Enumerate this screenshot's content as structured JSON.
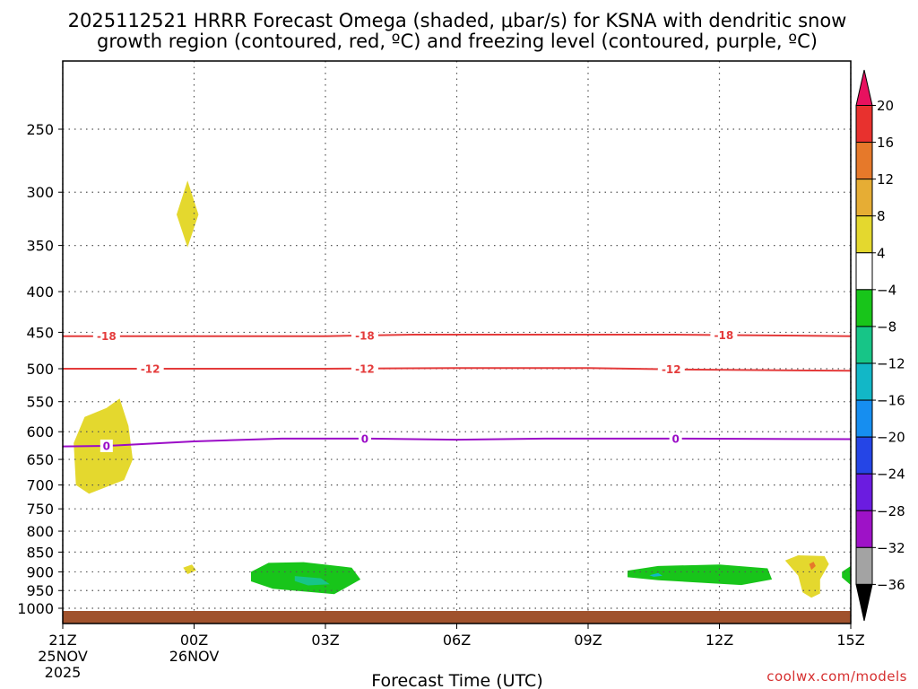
{
  "chart_data": {
    "type": "heatmap",
    "title_line1": "2025112521 HRRR Forecast Omega (shaded, μbar/s) for KSNA with dendritic snow",
    "title_line2": "growth region (contoured, red, ºC) and freezing level (contoured, purple, ºC)",
    "xlabel": "Forecast Time (UTC)",
    "credit": "coolwx.com/models",
    "x_ticks": [
      {
        "hour": 0,
        "lines": [
          "21Z",
          "25NOV",
          "2025"
        ]
      },
      {
        "hour": 3,
        "lines": [
          "00Z",
          "26NOV"
        ]
      },
      {
        "hour": 6,
        "lines": [
          "03Z"
        ]
      },
      {
        "hour": 9,
        "lines": [
          "06Z"
        ]
      },
      {
        "hour": 12,
        "lines": [
          "09Z"
        ]
      },
      {
        "hour": 15,
        "lines": [
          "12Z"
        ]
      },
      {
        "hour": 18,
        "lines": [
          "15Z"
        ]
      }
    ],
    "x_range_hours": [
      0,
      18
    ],
    "y_ticks": [
      250,
      300,
      350,
      400,
      450,
      500,
      550,
      600,
      650,
      700,
      750,
      800,
      850,
      900,
      950,
      1000
    ],
    "y_range_hpa": [
      200,
      1030
    ],
    "y_scale": "log",
    "grid": true,
    "surface_color": "#a0522d",
    "colorbar": {
      "levels": [
        20,
        16,
        12,
        8,
        4,
        -4,
        -8,
        -12,
        -16,
        -20,
        -24,
        -28,
        -32,
        -36
      ],
      "colors": [
        "#e8115f",
        "#e8312e",
        "#e6792a",
        "#e6ad34",
        "#e4d82e",
        "#ffffff",
        "#18c51a",
        "#17c587",
        "#12b7c7",
        "#168ef0",
        "#2545e6",
        "#6b1ce0",
        "#9e12c7",
        "#a3a3a3",
        "#000000"
      ]
    },
    "contours": [
      {
        "kind": "dendritic-18",
        "color": "#e43b3b",
        "label": "-18",
        "points": [
          [
            0,
            455
          ],
          [
            3,
            455
          ],
          [
            6,
            455
          ],
          [
            8,
            453
          ],
          [
            11,
            453
          ],
          [
            14,
            453
          ],
          [
            18,
            455
          ]
        ],
        "label_hours": [
          1,
          6.9,
          15.1
        ]
      },
      {
        "kind": "dendritic-12",
        "color": "#e43b3b",
        "label": "-12",
        "points": [
          [
            0,
            500
          ],
          [
            3,
            500
          ],
          [
            6,
            500
          ],
          [
            9,
            499
          ],
          [
            12,
            499
          ],
          [
            14,
            501
          ],
          [
            18,
            503
          ]
        ],
        "label_hours": [
          2,
          6.9,
          13.9
        ]
      },
      {
        "kind": "freezing",
        "color": "#9b0cc7",
        "label": "0",
        "points": [
          [
            0,
            626
          ],
          [
            1,
            625
          ],
          [
            3,
            617
          ],
          [
            5,
            612
          ],
          [
            7,
            612
          ],
          [
            9,
            614
          ],
          [
            11,
            612
          ],
          [
            14,
            612
          ],
          [
            18,
            613
          ]
        ],
        "label_hours": [
          1,
          6.9,
          14
        ]
      }
    ],
    "regions": [
      {
        "id": "upper-updraft",
        "color": "#e4d82e",
        "points": [
          [
            2.85,
            352
          ],
          [
            2.6,
            320
          ],
          [
            2.85,
            290
          ],
          [
            3.1,
            320
          ],
          [
            2.85,
            352
          ]
        ]
      },
      {
        "id": "midlevel-updraft",
        "color": "#e4d82e",
        "points": [
          [
            0.3,
            700
          ],
          [
            0.25,
            620
          ],
          [
            0.5,
            575
          ],
          [
            1,
            560
          ],
          [
            1.3,
            545
          ],
          [
            1.5,
            590
          ],
          [
            1.6,
            650
          ],
          [
            1.4,
            690
          ],
          [
            0.6,
            718
          ],
          [
            0.3,
            700
          ]
        ]
      },
      {
        "id": "small-updraft",
        "color": "#e4d82e",
        "points": [
          [
            2.75,
            889
          ],
          [
            2.95,
            881
          ],
          [
            3.05,
            896
          ],
          [
            2.85,
            906
          ],
          [
            2.75,
            889
          ]
        ]
      },
      {
        "id": "downdraft-a",
        "color": "#18c51a",
        "points": [
          [
            4.3,
            900
          ],
          [
            4.7,
            877
          ],
          [
            5.5,
            875
          ],
          [
            6.6,
            889
          ],
          [
            6.8,
            920
          ],
          [
            6.2,
            960
          ],
          [
            4.8,
            945
          ],
          [
            4.3,
            925
          ],
          [
            4.3,
            900
          ]
        ]
      },
      {
        "id": "downdraft-a-core",
        "color": "#17c587",
        "points": [
          [
            5.3,
            911
          ],
          [
            5.9,
            917
          ],
          [
            6.1,
            933
          ],
          [
            5.6,
            936
          ],
          [
            5.3,
            924
          ],
          [
            5.3,
            911
          ]
        ]
      },
      {
        "id": "downdraft-b",
        "color": "#18c51a",
        "points": [
          [
            12.9,
            897
          ],
          [
            13.6,
            885
          ],
          [
            15,
            881
          ],
          [
            16.1,
            891
          ],
          [
            16.2,
            920
          ],
          [
            15.5,
            935
          ],
          [
            13.6,
            922
          ],
          [
            12.9,
            914
          ],
          [
            12.9,
            897
          ]
        ]
      },
      {
        "id": "downdraft-b-core",
        "color": "#12b7c7",
        "points": [
          [
            13.4,
            909
          ],
          [
            13.6,
            903
          ],
          [
            13.7,
            910
          ],
          [
            13.5,
            913
          ],
          [
            13.4,
            909
          ]
        ]
      },
      {
        "id": "updraft-right",
        "color": "#e4d82e",
        "points": [
          [
            16.5,
            871
          ],
          [
            16.8,
            858
          ],
          [
            17.4,
            860
          ],
          [
            17.5,
            880
          ],
          [
            17.3,
            920
          ],
          [
            17.3,
            958
          ],
          [
            17.1,
            970
          ],
          [
            16.9,
            955
          ],
          [
            16.8,
            910
          ],
          [
            16.5,
            871
          ]
        ]
      },
      {
        "id": "updraft-right-core",
        "color": "#e6792a",
        "points": [
          [
            17.05,
            880
          ],
          [
            17.15,
            874
          ],
          [
            17.2,
            885
          ],
          [
            17.1,
            895
          ],
          [
            17.05,
            880
          ]
        ]
      },
      {
        "id": "downdraft-edge",
        "color": "#18c51a",
        "points": [
          [
            17.8,
            900
          ],
          [
            18,
            885
          ],
          [
            18,
            935
          ],
          [
            17.8,
            915
          ],
          [
            17.8,
            900
          ]
        ]
      }
    ]
  }
}
